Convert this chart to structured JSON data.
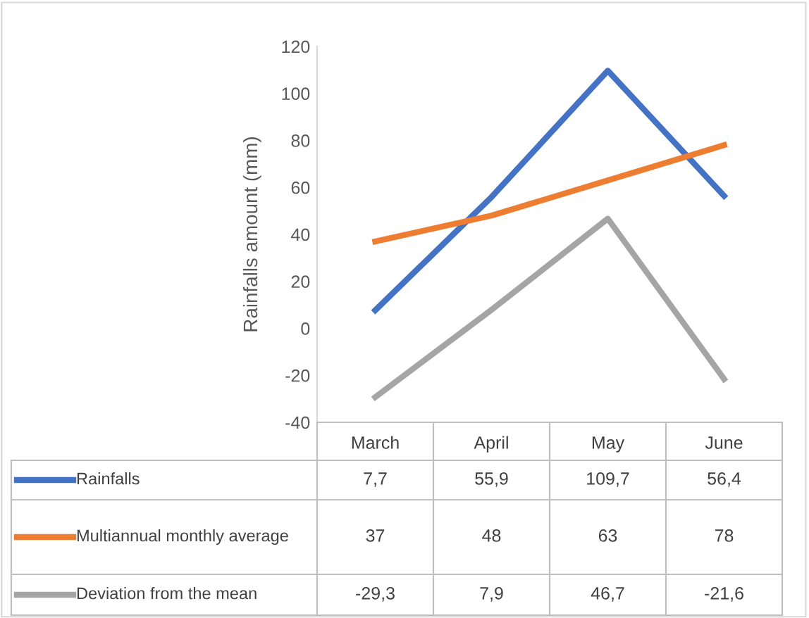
{
  "chart_data": {
    "type": "line",
    "ylabel": "Rainfalls amount (mm)",
    "categories": [
      "March",
      "April",
      "May",
      "June"
    ],
    "ylim": [
      -40,
      120
    ],
    "yticks": [
      -40,
      -20,
      0,
      20,
      40,
      60,
      80,
      100,
      120
    ],
    "grid": false,
    "legend": "bottom left",
    "marker": "none",
    "line_style": "solid",
    "series": [
      {
        "name": "Rainfalls",
        "color": "#4472c4",
        "values": [
          7.7,
          55.9,
          109.7,
          56.4
        ],
        "value_labels": [
          "7,7",
          "55,9",
          "109,7",
          "56,4"
        ]
      },
      {
        "name": "Multiannual monthly average",
        "color": "#ed7d31",
        "values": [
          37,
          48,
          63,
          78
        ],
        "value_labels": [
          "37",
          "48",
          "63",
          "78"
        ]
      },
      {
        "name": "Deviation from the mean",
        "color": "#a5a5a5",
        "values": [
          -29.3,
          7.9,
          46.7,
          -21.6
        ],
        "value_labels": [
          "-29,3",
          "7,9",
          "46,7",
          "-21,6"
        ]
      }
    ]
  }
}
